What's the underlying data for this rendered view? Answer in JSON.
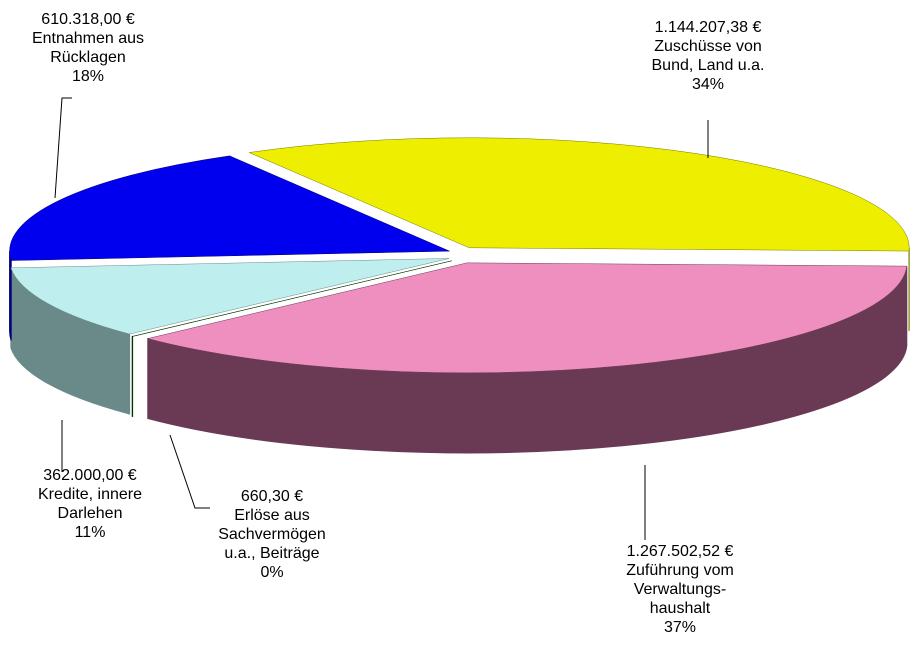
{
  "chart_data": {
    "type": "pie",
    "categories": [
      "Zuschüsse von\nBund, Land u.a.",
      "Zuführung vom\nVerwaltungs-\nhaushalt",
      "Erlöse aus\nSachvermögen\nu.a., Beiträge",
      "Kredite, innere\nDarlehen",
      "Entnahmen aus\nRücklagen"
    ],
    "values": [
      1144207.38,
      1267502.52,
      660.3,
      362000.0,
      610318.0
    ],
    "value_labels": [
      "1.144.207,38 €",
      "1.267.502,52 €",
      "660,30 €",
      "362.000,00 €",
      "610.318,00 €"
    ],
    "percent_labels": [
      "34%",
      "37%",
      "0%",
      "11%",
      "18%"
    ],
    "colors": [
      "#eeee00",
      "#ee8fbf",
      "#006600",
      "#bfeeee",
      "#0000ee"
    ],
    "side_colors": [
      "#7a7a00",
      "#6a3a55",
      "#003300",
      "#6a8a8a",
      "#00007a"
    ]
  }
}
